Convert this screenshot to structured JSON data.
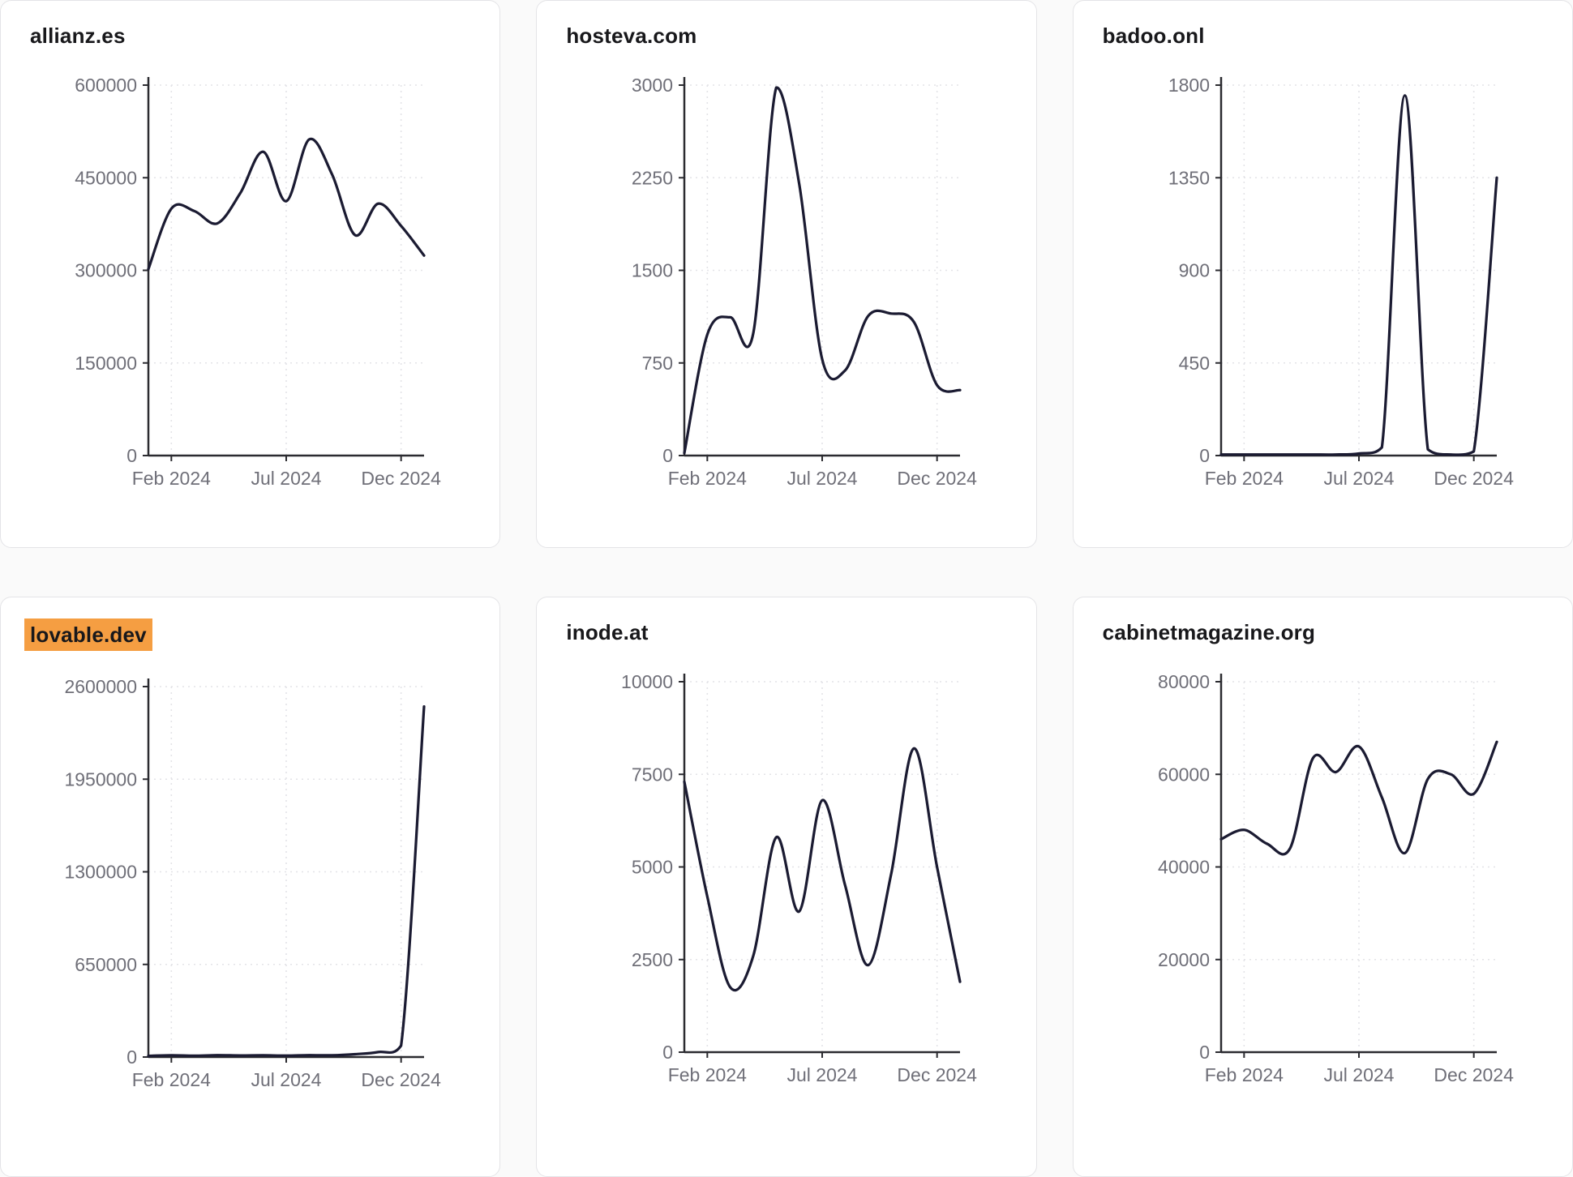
{
  "styles": {
    "page_bg": "#fafafa",
    "card_bg": "#ffffff",
    "card_border": "#e4e4e7",
    "title_color": "#18181b",
    "line_color": "#1b1b32",
    "axis_color": "#2b2b30",
    "tick_label_color": "#6f6f78",
    "grid_color": "#e3e3e7",
    "highlight_color": "#f59e42"
  },
  "chart_data": [
    {
      "type": "line",
      "title": "allianz.es",
      "title_highlight": false,
      "x": [
        "Jan 2024",
        "Feb 2024",
        "Mar 2024",
        "Apr 2024",
        "May 2024",
        "Jun 2024",
        "Jul 2024",
        "Aug 2024",
        "Sep 2024",
        "Oct 2024",
        "Nov 2024",
        "Dec 2024",
        "Jan 2025"
      ],
      "values": [
        302000,
        400000,
        396000,
        376000,
        425000,
        492000,
        412000,
        512000,
        455000,
        357000,
        408000,
        372000,
        324000
      ],
      "ylim": [
        0,
        600000
      ],
      "y_ticks": [
        0,
        150000,
        300000,
        450000,
        600000
      ],
      "x_tick_labels": [
        "Feb 2024",
        "Jul 2024",
        "Dec 2024"
      ],
      "x_tick_indices": [
        1,
        6,
        11
      ],
      "grid": "dashed",
      "legend": "none"
    },
    {
      "type": "line",
      "title": "hosteva.com",
      "title_highlight": false,
      "x": [
        "Jan 2024",
        "Feb 2024",
        "Mar 2024",
        "Apr 2024",
        "May 2024",
        "Jun 2024",
        "Jul 2024",
        "Aug 2024",
        "Sep 2024",
        "Oct 2024",
        "Nov 2024",
        "Dec 2024",
        "Jan 2025"
      ],
      "values": [
        20,
        980,
        1120,
        990,
        2980,
        2200,
        780,
        690,
        1130,
        1150,
        1080,
        570,
        530
      ],
      "ylim": [
        0,
        3000
      ],
      "y_ticks": [
        0,
        750,
        1500,
        2250,
        3000
      ],
      "x_tick_labels": [
        "Feb 2024",
        "Jul 2024",
        "Dec 2024"
      ],
      "x_tick_indices": [
        1,
        6,
        11
      ],
      "grid": "dashed",
      "legend": "none"
    },
    {
      "type": "line",
      "title": "badoo.onl",
      "title_highlight": false,
      "x": [
        "Jan 2024",
        "Feb 2024",
        "Mar 2024",
        "Apr 2024",
        "May 2024",
        "Jun 2024",
        "Jul 2024",
        "Aug 2024",
        "Sep 2024",
        "Oct 2024",
        "Nov 2024",
        "Dec 2024",
        "Jan 2025"
      ],
      "values": [
        5,
        5,
        5,
        5,
        5,
        5,
        10,
        40,
        1750,
        30,
        5,
        20,
        1350
      ],
      "ylim": [
        0,
        1800
      ],
      "y_ticks": [
        0,
        450,
        900,
        1350,
        1800
      ],
      "x_tick_labels": [
        "Feb 2024",
        "Jul 2024",
        "Dec 2024"
      ],
      "x_tick_indices": [
        1,
        6,
        11
      ],
      "grid": "dashed",
      "legend": "none"
    },
    {
      "type": "line",
      "title": "lovable.dev",
      "title_highlight": true,
      "x": [
        "Jan 2024",
        "Feb 2024",
        "Mar 2024",
        "Apr 2024",
        "May 2024",
        "Jun 2024",
        "Jul 2024",
        "Aug 2024",
        "Sep 2024",
        "Oct 2024",
        "Nov 2024",
        "Dec 2024",
        "Jan 2025"
      ],
      "values": [
        8000,
        12000,
        9000,
        13000,
        11000,
        12000,
        10000,
        13000,
        12000,
        20000,
        35000,
        80000,
        2460000
      ],
      "ylim": [
        0,
        2600000
      ],
      "y_ticks": [
        0,
        650000,
        1300000,
        1950000,
        2600000
      ],
      "x_tick_labels": [
        "Feb 2024",
        "Jul 2024",
        "Dec 2024"
      ],
      "x_tick_indices": [
        1,
        6,
        11
      ],
      "grid": "dashed",
      "legend": "none"
    },
    {
      "type": "line",
      "title": "inode.at",
      "title_highlight": false,
      "x": [
        "Jan 2024",
        "Feb 2024",
        "Mar 2024",
        "Apr 2024",
        "May 2024",
        "Jun 2024",
        "Jul 2024",
        "Aug 2024",
        "Sep 2024",
        "Oct 2024",
        "Nov 2024",
        "Dec 2024",
        "Jan 2025"
      ],
      "values": [
        7300,
        4200,
        1750,
        2600,
        5800,
        3800,
        6800,
        4500,
        2350,
        4800,
        8200,
        5000,
        1900
      ],
      "ylim": [
        0,
        10000
      ],
      "y_ticks": [
        0,
        2500,
        5000,
        7500,
        10000
      ],
      "x_tick_labels": [
        "Feb 2024",
        "Jul 2024",
        "Dec 2024"
      ],
      "x_tick_indices": [
        1,
        6,
        11
      ],
      "grid": "dashed",
      "legend": "none"
    },
    {
      "type": "line",
      "title": "cabinetmagazine.org",
      "title_highlight": false,
      "x": [
        "Jan 2024",
        "Feb 2024",
        "Mar 2024",
        "Apr 2024",
        "May 2024",
        "Jun 2024",
        "Jul 2024",
        "Aug 2024",
        "Sep 2024",
        "Oct 2024",
        "Nov 2024",
        "Dec 2024",
        "Jan 2025"
      ],
      "values": [
        46000,
        48000,
        45000,
        44000,
        63500,
        60500,
        66000,
        55000,
        43000,
        59000,
        60000,
        55800,
        67000
      ],
      "ylim": [
        0,
        80000
      ],
      "y_ticks": [
        0,
        20000,
        40000,
        60000,
        80000
      ],
      "x_tick_labels": [
        "Feb 2024",
        "Jul 2024",
        "Dec 2024"
      ],
      "x_tick_indices": [
        1,
        6,
        11
      ],
      "grid": "dashed",
      "legend": "none"
    }
  ]
}
